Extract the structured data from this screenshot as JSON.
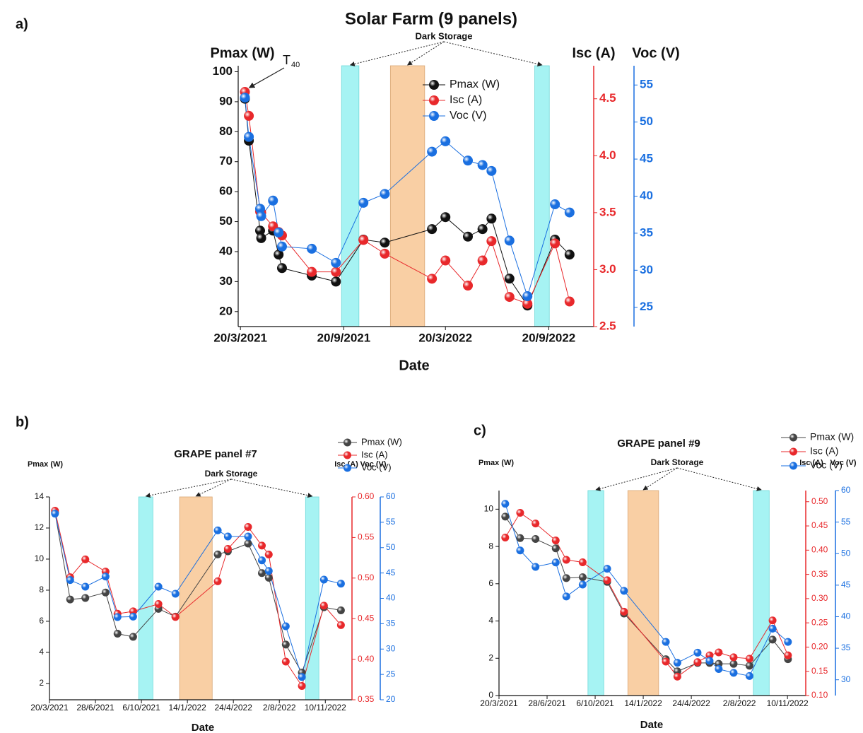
{
  "chart_data": [
    {
      "type": "line",
      "panel_label": "a)",
      "title": "Solar Farm (9 panels)",
      "x_label": "Date",
      "y_label": "Pmax (W)",
      "y2_label": "Isc (A)",
      "y3_label": "Voc (V)",
      "annotation": "Dark Storage",
      "t_label": {
        "base": "T",
        "subscript": "40"
      },
      "x": [
        "2021-03-28",
        "2021-04-04",
        "2021-04-24",
        "2021-04-26",
        "2021-05-17",
        "2021-05-27",
        "2021-06-02",
        "2021-07-25",
        "2021-09-06",
        "2021-10-25",
        "2021-12-02",
        "2022-02-24",
        "2022-03-20",
        "2022-04-29",
        "2022-05-25",
        "2022-06-10",
        "2022-07-12",
        "2022-08-13",
        "2022-10-01",
        "2022-10-27"
      ],
      "xlim": [
        "2021-03-16",
        "2022-12-09"
      ],
      "xticks": [
        {
          "value": "2021-03-20",
          "label": "20/3/2021"
        },
        {
          "value": "2021-09-20",
          "label": "20/9/2021"
        },
        {
          "value": "2022-03-20",
          "label": "20/3/2022"
        },
        {
          "value": "2022-09-20",
          "label": "20/9/2022"
        }
      ],
      "ylim": [
        15,
        102
      ],
      "yticks": [
        20,
        30,
        40,
        50,
        60,
        70,
        80,
        90,
        100
      ],
      "y2lim": [
        2.5,
        4.79
      ],
      "y2ticks": [
        2.5,
        {
          "value": 3,
          "label": "3.0"
        },
        3.5,
        {
          "value": 4,
          "label": "4.0"
        },
        4.5
      ],
      "y3lim": [
        22.4,
        57.6
      ],
      "y3ticks": [
        25,
        30,
        35,
        40,
        45,
        50,
        55
      ],
      "series": [
        {
          "name": "Pmax (W)",
          "color": "#111111",
          "values": [
            91,
            77,
            47,
            44.5,
            47,
            39,
            34.5,
            32,
            30,
            44,
            43,
            47.5,
            51.5,
            45,
            47.5,
            51,
            31,
            22,
            44,
            39
          ]
        },
        {
          "name": "Isc (A)",
          "color": "#e8282b",
          "axis": "y2",
          "values": [
            4.56,
            4.35,
            3.51,
            3.5,
            3.38,
            3.33,
            3.3,
            2.98,
            2.98,
            3.26,
            3.14,
            2.92,
            3.08,
            2.86,
            3.08,
            3.25,
            2.76,
            2.7,
            3.23,
            2.72
          ]
        },
        {
          "name": "Voc (V)",
          "color": "#1a6fe0",
          "axis": "y3",
          "values": [
            53.3,
            48,
            38.3,
            37.3,
            39.4,
            35.1,
            33.2,
            32.9,
            31,
            39.1,
            40.3,
            46,
            47.4,
            44.8,
            44.2,
            43.4,
            34,
            26.5,
            38.9,
            37.8
          ]
        }
      ],
      "shaded_regions": [
        {
          "start": "2021-09-16",
          "end": "2021-10-17",
          "color": "#a6f3f3"
        },
        {
          "start": "2021-12-12",
          "end": "2022-02-11",
          "color": "#f9cfa4"
        },
        {
          "start": "2022-08-26",
          "end": "2022-09-21",
          "color": "#a6f3f3"
        }
      ]
    },
    {
      "type": "line",
      "panel_label": "b)",
      "title": "GRAPE panel  #7",
      "x_label": "Date",
      "y_label": "Pmax (W)",
      "y2_label": "Isc (A)",
      "y3_label": "Voc (V)",
      "annotation": "Dark Storage",
      "x": [
        "2021-04-01",
        "2021-05-04",
        "2021-06-06",
        "2021-07-20",
        "2021-08-15",
        "2021-09-18",
        "2021-11-12",
        "2021-12-19",
        "2022-03-21",
        "2022-04-12",
        "2022-05-26",
        "2022-06-25",
        "2022-07-10",
        "2022-08-16",
        "2022-09-20",
        "2022-11-07",
        "2022-12-14"
      ],
      "xlim": [
        "2021-03-20",
        "2023-01-07"
      ],
      "xticks": [
        {
          "value": "2021-03-20",
          "label": "20/3/2021"
        },
        {
          "value": "2021-06-28",
          "label": "28/6/2021"
        },
        {
          "value": "2021-10-06",
          "label": "6/10/2021"
        },
        {
          "value": "2022-01-14",
          "label": "14/1/2022"
        },
        {
          "value": "2022-04-24",
          "label": "24/4/2022"
        },
        {
          "value": "2022-08-02",
          "label": "2/8/2022"
        },
        {
          "value": "2022-11-10",
          "label": "10/11/2022"
        }
      ],
      "ylim": [
        0.95,
        14
      ],
      "yticks": [
        2,
        4,
        6,
        8,
        10,
        12,
        14
      ],
      "y2lim": [
        0.35,
        0.6
      ],
      "y2ticks": [
        0.35,
        {
          "value": 0.4,
          "label": "0.40"
        },
        0.45,
        {
          "value": 0.5,
          "label": "0.50"
        },
        0.55,
        {
          "value": 0.6,
          "label": "0.60"
        }
      ],
      "y3lim": [
        20,
        60
      ],
      "y3ticks": [
        20,
        25,
        30,
        35,
        40,
        45,
        50,
        55,
        60
      ],
      "series": [
        {
          "name": "Pmax (W)",
          "color": "#444444",
          "values": [
            13,
            7.4,
            7.5,
            7.85,
            5.2,
            5,
            6.8,
            6.3,
            10.3,
            10.5,
            11,
            9.1,
            8.8,
            4.5,
            2.7,
            6.9,
            6.7
          ]
        },
        {
          "name": "Isc (A)",
          "color": "#e8282b",
          "axis": "y2",
          "values": [
            0.583,
            0.501,
            0.523,
            0.508,
            0.456,
            0.459,
            0.468,
            0.452,
            0.496,
            0.536,
            0.563,
            0.54,
            0.529,
            0.397,
            0.367,
            0.466,
            0.442
          ]
        },
        {
          "name": "Voc (V)",
          "color": "#1a6fe0",
          "axis": "y3",
          "values": [
            56.7,
            43.6,
            42.3,
            44.3,
            36.3,
            36.4,
            42.3,
            40.9,
            53.4,
            52.2,
            52.2,
            47.5,
            45.4,
            34.5,
            24.5,
            43.7,
            42.9
          ]
        }
      ],
      "shaded_regions": [
        {
          "start": "2021-09-30",
          "end": "2021-10-31",
          "color": "#a6f3f3"
        },
        {
          "start": "2021-12-28",
          "end": "2022-03-09",
          "color": "#f9cfa4"
        },
        {
          "start": "2022-09-28",
          "end": "2022-10-27",
          "color": "#a6f3f3"
        }
      ]
    },
    {
      "type": "line",
      "panel_label": "c)",
      "title": "GRAPE panel  #9",
      "x_label": "Date",
      "y_label": "Pmax (W)",
      "y2_label": "Isc (A)",
      "y3_label": "Voc (V)",
      "annotation": "Dark Storage",
      "x": [
        "2021-04-02",
        "2021-05-03",
        "2021-06-04",
        "2021-07-16",
        "2021-08-07",
        "2021-09-10",
        "2021-10-31",
        "2021-12-05",
        "2022-03-02",
        "2022-03-26",
        "2022-05-07",
        "2022-06-01",
        "2022-06-20",
        "2022-07-21",
        "2022-08-23",
        "2022-10-10",
        "2022-11-11"
      ],
      "xlim": [
        "2021-03-20",
        "2022-12-18"
      ],
      "xticks": [
        {
          "value": "2021-03-20",
          "label": "20/3/2021"
        },
        {
          "value": "2021-06-28",
          "label": "28/6/2021"
        },
        {
          "value": "2021-10-06",
          "label": "6/10/2021"
        },
        {
          "value": "2022-01-14",
          "label": "14/1/2022"
        },
        {
          "value": "2022-04-24",
          "label": "24/4/2022"
        },
        {
          "value": "2022-08-02",
          "label": "2/8/2022"
        },
        {
          "value": "2022-11-10",
          "label": "10/11/2022"
        }
      ],
      "ylim": [
        0,
        11
      ],
      "yticks": [
        0,
        2,
        4,
        6,
        8,
        10
      ],
      "y2lim": [
        0.1,
        0.523
      ],
      "y2ticks": [
        {
          "value": 0.1,
          "label": "0.10"
        },
        0.15,
        {
          "value": 0.2,
          "label": "0.20"
        },
        0.25,
        {
          "value": 0.3,
          "label": "0.30"
        },
        0.35,
        {
          "value": 0.4,
          "label": "0.40"
        },
        0.45,
        {
          "value": 0.5,
          "label": "0.50"
        }
      ],
      "y3lim": [
        27.5,
        60
      ],
      "y3ticks": [
        30,
        35,
        40,
        45,
        50,
        55,
        60
      ],
      "series": [
        {
          "name": "Pmax (W)",
          "color": "#444444",
          "values": [
            9.6,
            8.45,
            8.4,
            7.9,
            6.3,
            6.35,
            6.1,
            4.4,
            1.95,
            1.3,
            1.75,
            1.75,
            1.7,
            1.7,
            1.6,
            3,
            1.95
          ]
        },
        {
          "name": "Isc (A)",
          "color": "#e8282b",
          "axis": "y2",
          "values": [
            0.426,
            0.477,
            0.455,
            0.42,
            0.38,
            0.375,
            0.338,
            0.273,
            0.17,
            0.139,
            0.169,
            0.183,
            0.189,
            0.179,
            0.176,
            0.255,
            0.183
          ]
        },
        {
          "name": "Voc (V)",
          "color": "#1a6fe0",
          "axis": "y3",
          "values": [
            57.9,
            50.5,
            47.9,
            48.6,
            43.2,
            45.1,
            47.6,
            44.1,
            36,
            32.7,
            34.3,
            33,
            31.7,
            31.1,
            30.6,
            38.1,
            36
          ]
        }
      ],
      "shaded_regions": [
        {
          "start": "2021-09-21",
          "end": "2021-10-24",
          "color": "#a6f3f3"
        },
        {
          "start": "2021-12-13",
          "end": "2022-02-15",
          "color": "#f9cfa4"
        },
        {
          "start": "2022-08-31",
          "end": "2022-10-03",
          "color": "#a6f3f3"
        }
      ]
    }
  ]
}
